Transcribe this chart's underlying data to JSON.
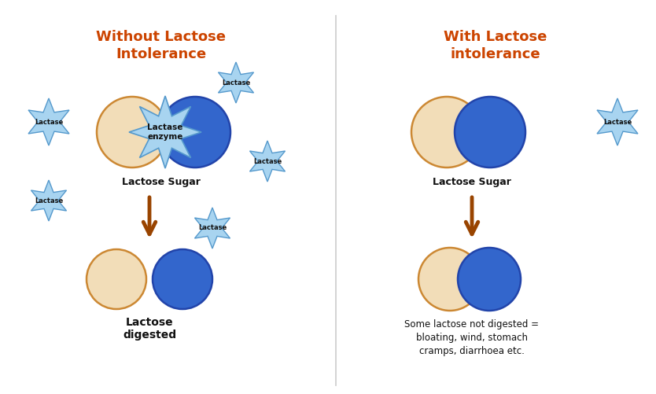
{
  "bg_color": "#ffffff",
  "title_left": "Without Lactose\nIntolerance",
  "title_right": "With Lactose\nintolerance",
  "title_color": "#cc4400",
  "beige_color": "#f2ddb8",
  "beige_edge": "#cc8833",
  "blue_color": "#3366cc",
  "blue_edge": "#2244aa",
  "light_blue_fill": "#a8d4f0",
  "light_blue_edge": "#5599cc",
  "arrow_color": "#994400",
  "text_color": "#111111",
  "label_lactose_sugar": "Lactose Sugar",
  "label_lactase_enzyme": "Lactase\nenzyme",
  "label_lactose_digested": "Lactose\ndigested",
  "label_some_lactose": "Some lactose not digested =\nbloating, wind, stomach\ncramps, diarrhoea etc.",
  "label_lactase": "Lactase"
}
